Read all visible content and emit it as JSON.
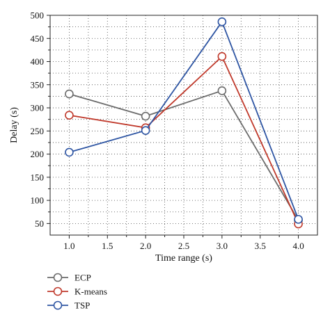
{
  "chart_data": {
    "type": "line",
    "title": "",
    "xlabel": "Time range (s)",
    "ylabel": "Delay (s)",
    "x": [
      1.0,
      2.0,
      3.0,
      4.0
    ],
    "xlim": [
      0.75,
      4.25
    ],
    "ylim": [
      25,
      500
    ],
    "x_ticks": [
      1.0,
      1.5,
      2.0,
      2.5,
      3.0,
      3.5,
      4.0
    ],
    "x_tick_labels": [
      "1.0",
      "1.5",
      "2.0",
      "2.5",
      "3.0",
      "3.5",
      "4.0"
    ],
    "y_ticks": [
      50,
      100,
      150,
      200,
      250,
      300,
      350,
      400,
      450,
      500
    ],
    "y_tick_labels": [
      "50",
      "100",
      "150",
      "200",
      "250",
      "300",
      "350",
      "400",
      "450",
      "500"
    ],
    "grid": true,
    "legend_position": "bottom-left",
    "series": [
      {
        "name": "ECP",
        "color": "#6b6b6b",
        "values": [
          330,
          282,
          337,
          57
        ]
      },
      {
        "name": "K-means",
        "color": "#c0392b",
        "values": [
          284,
          257,
          411,
          49
        ]
      },
      {
        "name": "TSP",
        "color": "#2e55a3",
        "values": [
          204,
          251,
          486,
          59
        ]
      }
    ]
  }
}
